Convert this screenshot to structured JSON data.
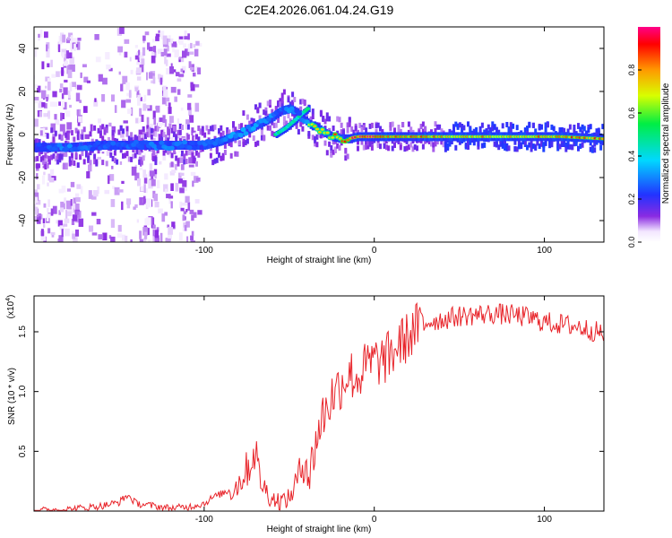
{
  "figure_title": "C2E4.2026.061.04.24.G19",
  "chart_data": [
    {
      "type": "heatmap",
      "title": "C2E4.2026.061.04.24.G19",
      "xlabel": "Height of straight line (km)",
      "ylabel": "Frequency (Hz)",
      "xlim": [
        -200,
        135
      ],
      "ylim": [
        -50,
        50
      ],
      "x_ticks": [
        -100,
        0,
        100
      ],
      "y_ticks": [
        -40,
        -20,
        0,
        20,
        40
      ],
      "x_tick_labels": [
        "-100",
        "0",
        "100"
      ],
      "y_tick_labels": [
        "-40",
        "-20",
        "0",
        "20",
        "40"
      ],
      "colorbar": {
        "label": "Normalized spectral amplitude",
        "range": [
          0,
          1
        ],
        "ticks": [
          0.0,
          0.2,
          0.4,
          0.6,
          0.8
        ],
        "tick_labels": [
          "0.0",
          "0.2",
          "0.4",
          "0.6",
          "0.8"
        ],
        "colormap": "rainbow (white-violet-blue-cyan-green-yellow-red-magenta)"
      },
      "ridge": {
        "x": [
          -200,
          -180,
          -160,
          -140,
          -120,
          -100,
          -90,
          -80,
          -70,
          -60,
          -55,
          -50,
          -45,
          -40,
          -37,
          -35,
          -30,
          -25,
          -20,
          -15,
          -10,
          0,
          20,
          50,
          80,
          110,
          135
        ],
        "frequency": [
          -6,
          -6,
          -5,
          -5,
          -5,
          -5,
          -3,
          0,
          4,
          8,
          11,
          12,
          10,
          6,
          4,
          4,
          1,
          -1,
          -2,
          -2,
          -1,
          -1,
          -1,
          -1,
          -1,
          -1,
          -2
        ],
        "amplitude": [
          0.35,
          0.45,
          0.4,
          0.4,
          0.45,
          0.4,
          0.45,
          0.5,
          0.5,
          0.45,
          0.4,
          0.45,
          0.4,
          0.55,
          0.75,
          0.7,
          0.7,
          0.75,
          0.85,
          0.9,
          0.95,
          1.0,
          0.85,
          0.8,
          0.8,
          0.85,
          0.85
        ]
      },
      "secondary_ridge": {
        "x": [
          -58,
          -52,
          -46,
          -42,
          -39
        ],
        "frequency": [
          0,
          3,
          7,
          10,
          12
        ]
      },
      "noise_bands_km": [
        -195,
        -180,
        -135,
        -125,
        -110
      ]
    },
    {
      "type": "line",
      "xlabel": "Height of straight line (km)",
      "ylabel": "SNR (10 * v/v)",
      "y_multiplier": "(x10",
      "y_multiplier_exponent": "4",
      "y_multiplier_close": ")",
      "xlim": [
        -200,
        135
      ],
      "ylim": [
        0,
        1.8
      ],
      "x_ticks": [
        -100,
        0,
        100
      ],
      "y_ticks": [
        0.5,
        1.0,
        1.5
      ],
      "x_tick_labels": [
        "-100",
        "0",
        "100"
      ],
      "y_tick_labels": [
        "0.5",
        "1.0",
        "1.5"
      ],
      "series": [
        {
          "name": "SNR",
          "color": "#e8242a",
          "x": [
            -200,
            -180,
            -160,
            -150,
            -145,
            -140,
            -120,
            -110,
            -100,
            -95,
            -90,
            -85,
            -80,
            -75,
            -72,
            -70,
            -68,
            -65,
            -60,
            -55,
            -50,
            -45,
            -40,
            -38,
            -35,
            -32,
            -30,
            -28,
            -25,
            -20,
            -15,
            -10,
            -5,
            0,
            5,
            10,
            15,
            20,
            25,
            30,
            40,
            50,
            60,
            70,
            80,
            90,
            100,
            110,
            120,
            130,
            135
          ],
          "values": [
            0.01,
            0.02,
            0.05,
            0.08,
            0.14,
            0.07,
            0.03,
            0.04,
            0.07,
            0.12,
            0.15,
            0.18,
            0.25,
            0.38,
            0.45,
            0.6,
            0.35,
            0.22,
            0.12,
            0.1,
            0.12,
            0.3,
            0.5,
            0.3,
            0.6,
            0.75,
            0.85,
            0.9,
            1.0,
            1.1,
            1.2,
            1.15,
            1.25,
            1.3,
            1.3,
            1.35,
            1.45,
            1.5,
            1.58,
            1.6,
            1.62,
            1.65,
            1.66,
            1.67,
            1.66,
            1.64,
            1.6,
            1.58,
            1.56,
            1.52,
            1.5
          ]
        }
      ]
    }
  ]
}
